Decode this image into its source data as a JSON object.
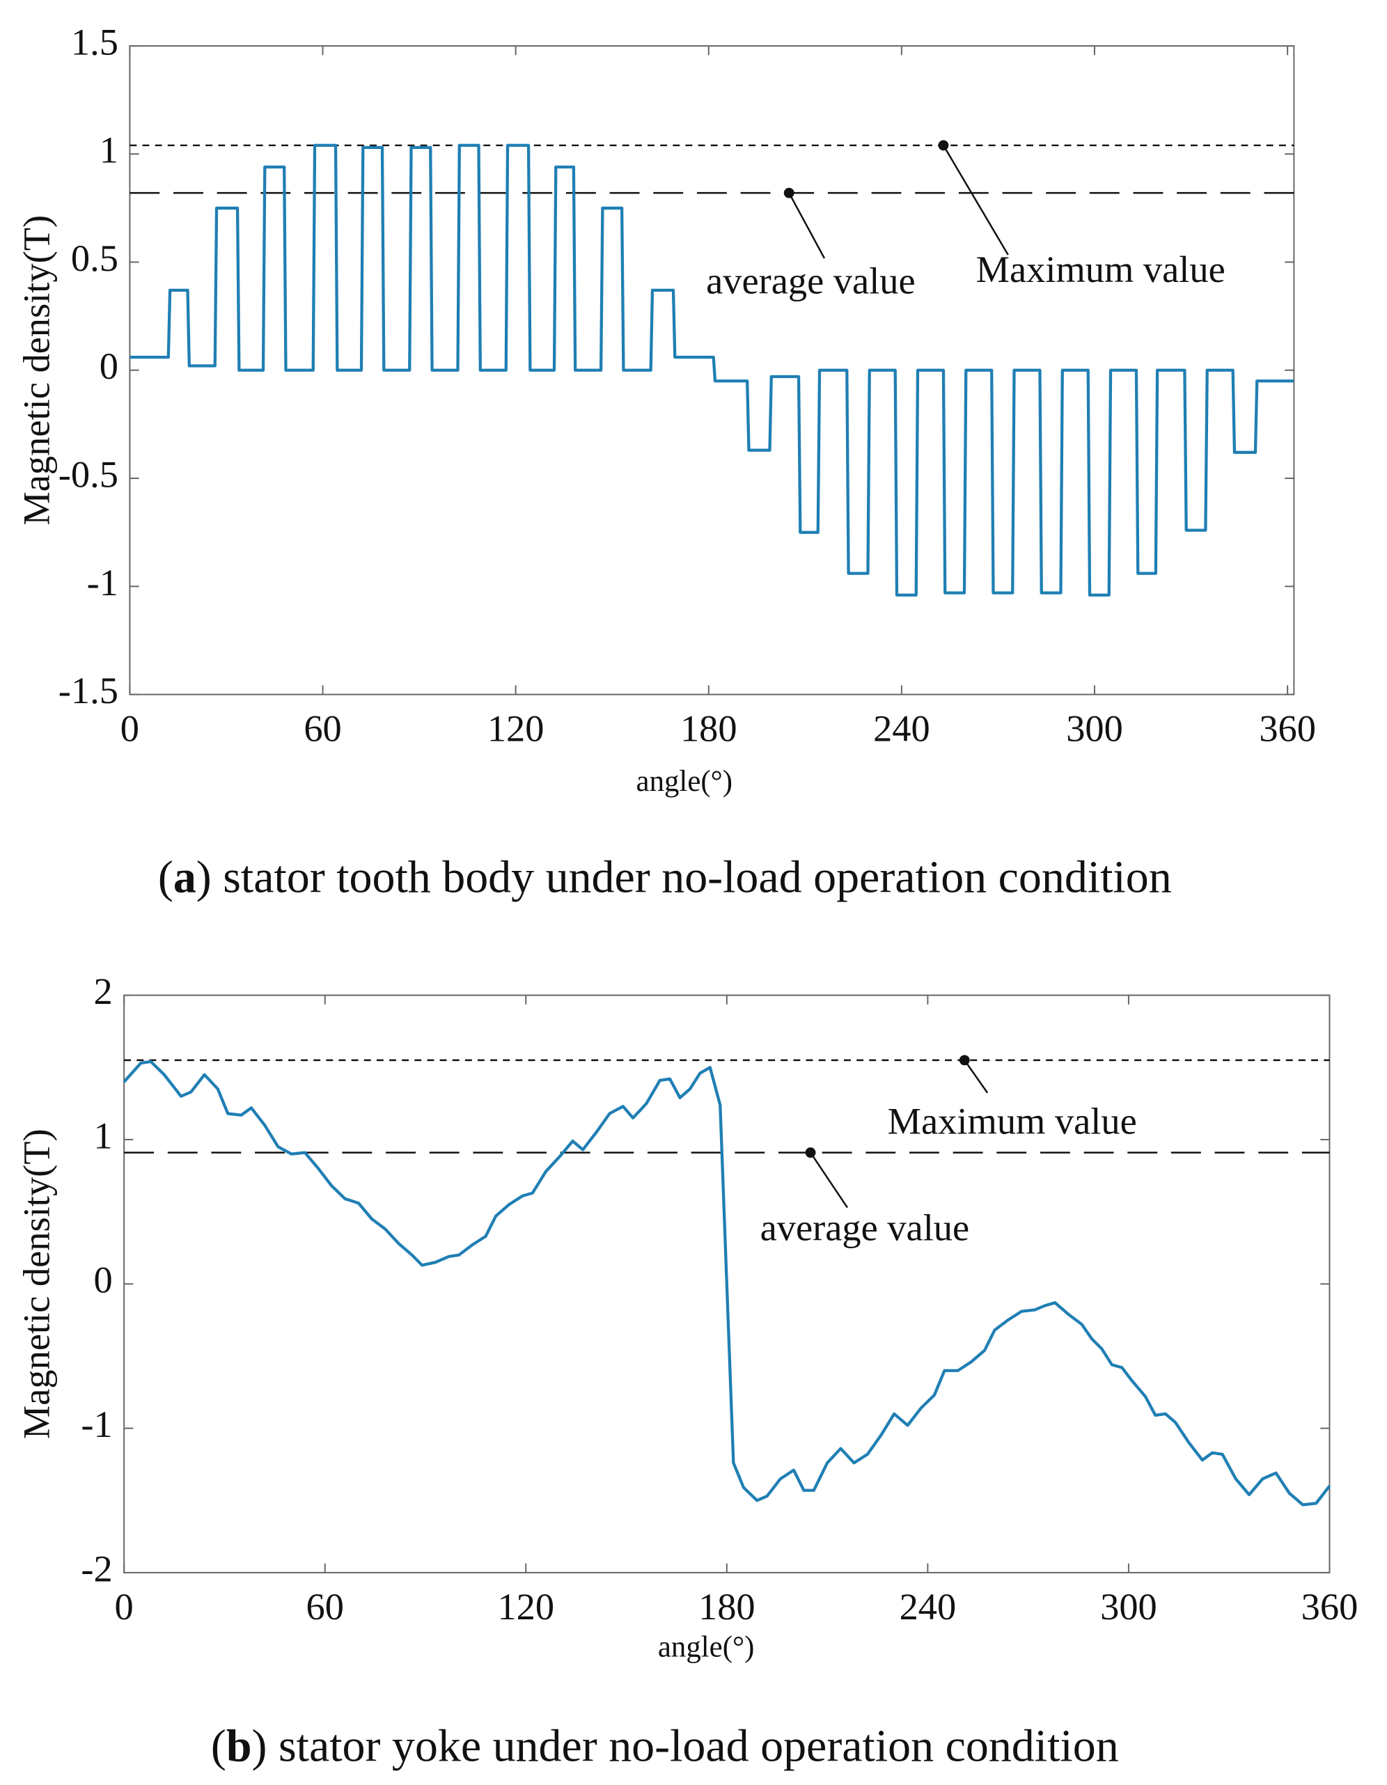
{
  "chart_data": [
    {
      "type": "line",
      "caption_parts": [
        "(",
        "a",
        ") stator tooth body under no-load operation condition"
      ],
      "xlabel": "angle(°)",
      "ylabel": "Magnetic density(T)",
      "xlim": [
        0,
        362
      ],
      "ylim": [
        -1.5,
        1.5
      ],
      "xticks": [
        0,
        60,
        120,
        180,
        240,
        300,
        360
      ],
      "yticks": [
        -1.5,
        -1,
        -0.5,
        0,
        0.5,
        1,
        1.5
      ],
      "color": "#1f7fb4",
      "x": [
        0,
        12,
        12.5,
        18,
        18.5,
        26.5,
        27,
        33.5,
        34,
        41.5,
        42,
        48,
        48.5,
        57,
        57.5,
        64,
        64.5,
        72,
        72.5,
        78.5,
        79,
        87,
        87.5,
        93.5,
        94,
        102,
        102.5,
        108.5,
        109,
        117,
        117.5,
        124,
        124.5,
        132,
        132.5,
        138,
        138.5,
        146.5,
        147,
        153,
        153.5,
        162,
        162.5,
        169,
        169.5,
        181.5,
        182,
        192,
        192.5,
        199,
        199.5,
        208,
        208.5,
        214,
        214.5,
        223,
        223.5,
        229.5,
        230,
        238,
        238.5,
        244.5,
        245,
        253,
        253.5,
        259.5,
        260,
        268,
        268.5,
        274.5,
        275,
        283,
        283.5,
        289.5,
        290,
        298,
        298.5,
        304.5,
        305,
        313,
        313.5,
        319,
        319.5,
        328,
        328.5,
        334.5,
        335,
        343,
        343.5,
        350,
        350.5,
        362
      ],
      "values": [
        0.06,
        0.06,
        0.37,
        0.37,
        0.02,
        0.02,
        0.75,
        0.75,
        0,
        0,
        0.94,
        0.94,
        0,
        0,
        1.04,
        1.04,
        0,
        0,
        1.03,
        1.03,
        0,
        0,
        1.03,
        1.03,
        0,
        0,
        1.04,
        1.04,
        0,
        0,
        1.04,
        1.04,
        0,
        0,
        0.94,
        0.94,
        0,
        0,
        0.75,
        0.75,
        0,
        0,
        0.37,
        0.37,
        0.06,
        0.06,
        -0.05,
        -0.05,
        -0.37,
        -0.37,
        -0.03,
        -0.03,
        -0.75,
        -0.75,
        0,
        0,
        -0.94,
        -0.94,
        0,
        0,
        -1.04,
        -1.04,
        0,
        0,
        -1.03,
        -1.03,
        0,
        0,
        -1.03,
        -1.03,
        0,
        0,
        -1.03,
        -1.03,
        0,
        0,
        -1.04,
        -1.04,
        0,
        0,
        -0.94,
        -0.94,
        0,
        0,
        -0.74,
        -0.74,
        0,
        0,
        -0.38,
        -0.38,
        -0.05,
        -0.05
      ],
      "reference_lines": [
        {
          "label": "Maximum value",
          "value": 1.04,
          "dash": "short"
        },
        {
          "label": "average value",
          "value": 0.82,
          "dash": "long"
        }
      ]
    },
    {
      "type": "line",
      "caption_parts": [
        "(",
        "b",
        ") stator yoke under no-load operation condition"
      ],
      "xlabel": "angle(°)",
      "ylabel": "Magnetic density(T)",
      "xlim": [
        0,
        360
      ],
      "ylim": [
        -2,
        2
      ],
      "xticks": [
        0,
        60,
        120,
        180,
        240,
        300,
        360
      ],
      "yticks": [
        -2,
        -1,
        0,
        1,
        2
      ],
      "color": "#1f7fb4",
      "x": [
        0,
        5,
        8,
        12,
        17,
        20,
        24,
        28,
        31,
        35,
        38,
        42,
        46,
        50,
        54,
        58,
        62,
        66,
        70,
        74,
        78,
        82,
        86,
        89,
        93,
        97,
        100,
        104,
        108,
        111,
        115,
        119,
        122,
        126,
        130,
        134,
        137,
        141,
        145,
        149,
        152,
        156,
        160,
        163,
        166,
        169,
        172,
        175,
        178,
        182,
        185,
        189,
        192,
        196,
        200,
        203,
        206,
        210,
        214,
        218,
        222,
        226,
        230,
        234,
        238,
        242,
        245,
        249,
        253,
        257,
        260,
        264,
        268,
        272,
        275,
        278,
        282,
        286,
        289,
        292,
        295,
        298,
        301,
        305,
        308,
        311,
        314,
        318,
        322,
        325,
        328,
        332,
        336,
        340,
        344,
        348,
        352,
        356,
        360
      ],
      "values": [
        1.4,
        1.53,
        1.54,
        1.45,
        1.3,
        1.33,
        1.45,
        1.35,
        1.18,
        1.17,
        1.22,
        1.1,
        0.95,
        0.9,
        0.91,
        0.8,
        0.68,
        0.59,
        0.56,
        0.45,
        0.38,
        0.28,
        0.2,
        0.13,
        0.15,
        0.19,
        0.2,
        0.27,
        0.33,
        0.47,
        0.55,
        0.61,
        0.63,
        0.78,
        0.88,
        0.99,
        0.93,
        1.05,
        1.18,
        1.23,
        1.15,
        1.25,
        1.41,
        1.42,
        1.29,
        1.35,
        1.46,
        1.5,
        1.24,
        -1.24,
        -1.41,
        -1.5,
        -1.47,
        -1.35,
        -1.29,
        -1.43,
        -1.43,
        -1.24,
        -1.14,
        -1.24,
        -1.18,
        -1.05,
        -0.9,
        -0.98,
        -0.86,
        -0.77,
        -0.6,
        -0.6,
        -0.54,
        -0.46,
        -0.32,
        -0.25,
        -0.19,
        -0.18,
        -0.15,
        -0.13,
        -0.21,
        -0.28,
        -0.38,
        -0.45,
        -0.56,
        -0.58,
        -0.67,
        -0.78,
        -0.91,
        -0.9,
        -0.96,
        -1.1,
        -1.22,
        -1.17,
        -1.18,
        -1.35,
        -1.46,
        -1.35,
        -1.31,
        -1.45,
        -1.53,
        -1.52,
        -1.4
      ],
      "reference_lines": [
        {
          "label": "Maximum value",
          "value": 1.55,
          "dash": "short"
        },
        {
          "label": "average value",
          "value": 0.91,
          "dash": "long"
        }
      ]
    }
  ]
}
